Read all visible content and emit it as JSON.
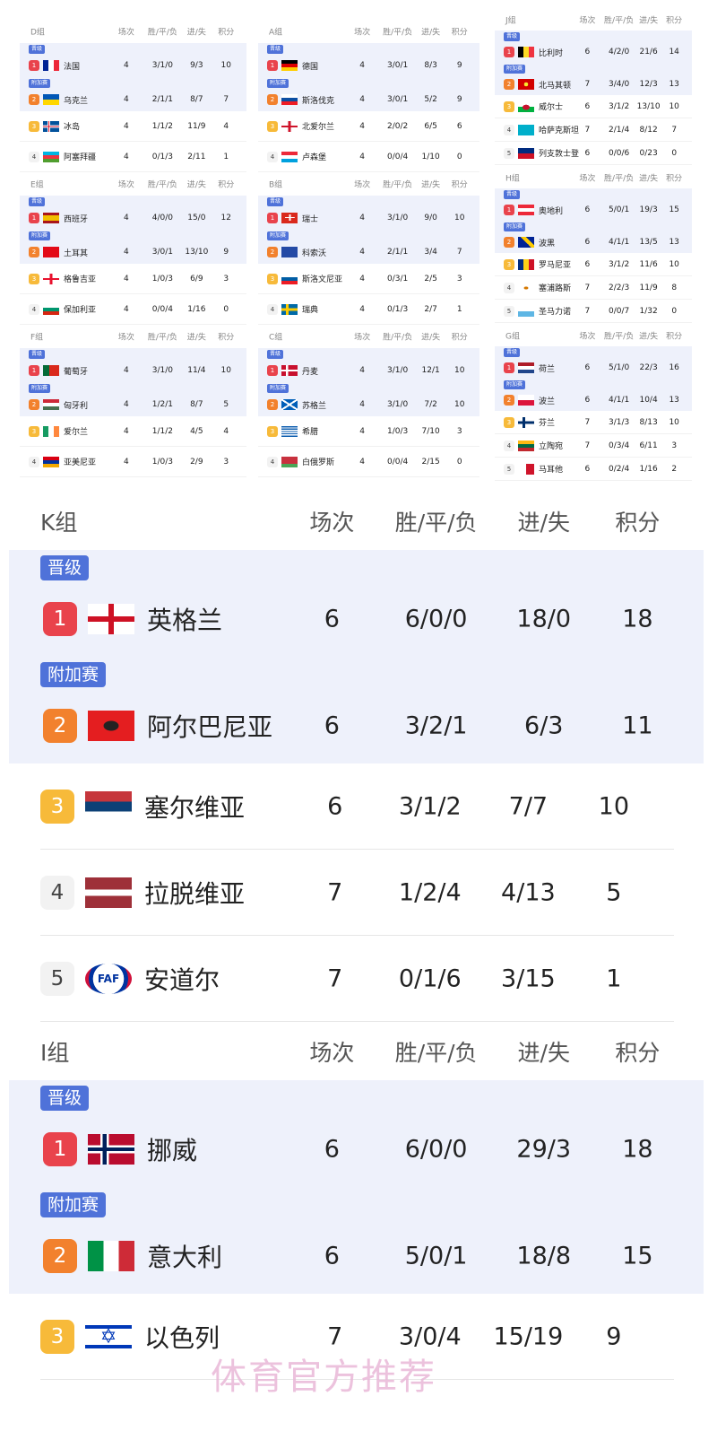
{
  "headers": {
    "played": "场次",
    "wdl": "胜/平/负",
    "gf_ga": "进/失",
    "pts": "积分"
  },
  "colors": {
    "tag": "#4f72d9",
    "rank1": "#e9434c",
    "rank2": "#f2812d",
    "rank3": "#f7ba3a",
    "highlight_row": "#eef1fb"
  },
  "mini_columns": [
    [
      {
        "name": "D组",
        "teams": [
          {
            "rank": "1",
            "tag": "晋级",
            "flag": "france",
            "name": "法国",
            "played": "4",
            "wdl": "3/1/0",
            "gf_ga": "9/3",
            "pts": "10"
          },
          {
            "rank": "2",
            "tag": "附加赛",
            "flag": "ukraine",
            "name": "乌克兰",
            "played": "4",
            "wdl": "2/1/1",
            "gf_ga": "8/7",
            "pts": "7"
          },
          {
            "rank": "3",
            "flag": "iceland",
            "name": "冰岛",
            "played": "4",
            "wdl": "1/1/2",
            "gf_ga": "11/9",
            "pts": "4"
          },
          {
            "rank": "4",
            "flag": "azerbaijan",
            "name": "阿塞拜疆",
            "played": "4",
            "wdl": "0/1/3",
            "gf_ga": "2/11",
            "pts": "1"
          }
        ]
      },
      {
        "name": "E组",
        "teams": [
          {
            "rank": "1",
            "tag": "晋级",
            "flag": "spain",
            "name": "西班牙",
            "played": "4",
            "wdl": "4/0/0",
            "gf_ga": "15/0",
            "pts": "12"
          },
          {
            "rank": "2",
            "tag": "附加赛",
            "flag": "turkey",
            "name": "土耳其",
            "played": "4",
            "wdl": "3/0/1",
            "gf_ga": "13/10",
            "pts": "9"
          },
          {
            "rank": "3",
            "flag": "georgia",
            "name": "格鲁吉亚",
            "played": "4",
            "wdl": "1/0/3",
            "gf_ga": "6/9",
            "pts": "3"
          },
          {
            "rank": "4",
            "flag": "bulgaria",
            "name": "保加利亚",
            "played": "4",
            "wdl": "0/0/4",
            "gf_ga": "1/16",
            "pts": "0"
          }
        ]
      },
      {
        "name": "F组",
        "teams": [
          {
            "rank": "1",
            "tag": "晋级",
            "flag": "portugal",
            "name": "葡萄牙",
            "played": "4",
            "wdl": "3/1/0",
            "gf_ga": "11/4",
            "pts": "10"
          },
          {
            "rank": "2",
            "tag": "附加赛",
            "flag": "hungary",
            "name": "匈牙利",
            "played": "4",
            "wdl": "1/2/1",
            "gf_ga": "8/7",
            "pts": "5"
          },
          {
            "rank": "3",
            "flag": "ireland",
            "name": "爱尔兰",
            "played": "4",
            "wdl": "1/1/2",
            "gf_ga": "4/5",
            "pts": "4"
          },
          {
            "rank": "4",
            "flag": "armenia",
            "name": "亚美尼亚",
            "played": "4",
            "wdl": "1/0/3",
            "gf_ga": "2/9",
            "pts": "3"
          }
        ]
      }
    ],
    [
      {
        "name": "A组",
        "teams": [
          {
            "rank": "1",
            "tag": "晋级",
            "flag": "germany",
            "name": "德国",
            "played": "4",
            "wdl": "3/0/1",
            "gf_ga": "8/3",
            "pts": "9"
          },
          {
            "rank": "2",
            "tag": "附加赛",
            "flag": "slovakia",
            "name": "斯洛伐克",
            "played": "4",
            "wdl": "3/0/1",
            "gf_ga": "5/2",
            "pts": "9"
          },
          {
            "rank": "3",
            "flag": "northern-ireland",
            "name": "北爱尔兰",
            "played": "4",
            "wdl": "2/0/2",
            "gf_ga": "6/5",
            "pts": "6"
          },
          {
            "rank": "4",
            "flag": "luxembourg",
            "name": "卢森堡",
            "played": "4",
            "wdl": "0/0/4",
            "gf_ga": "1/10",
            "pts": "0"
          }
        ]
      },
      {
        "name": "B组",
        "teams": [
          {
            "rank": "1",
            "tag": "晋级",
            "flag": "switzerland",
            "name": "瑞士",
            "played": "4",
            "wdl": "3/1/0",
            "gf_ga": "9/0",
            "pts": "10"
          },
          {
            "rank": "2",
            "tag": "附加赛",
            "flag": "kosovo",
            "name": "科索沃",
            "played": "4",
            "wdl": "2/1/1",
            "gf_ga": "3/4",
            "pts": "7"
          },
          {
            "rank": "3",
            "flag": "slovenia",
            "name": "斯洛文尼亚",
            "played": "4",
            "wdl": "0/3/1",
            "gf_ga": "2/5",
            "pts": "3"
          },
          {
            "rank": "4",
            "flag": "sweden",
            "name": "瑞典",
            "played": "4",
            "wdl": "0/1/3",
            "gf_ga": "2/7",
            "pts": "1"
          }
        ]
      },
      {
        "name": "C组",
        "teams": [
          {
            "rank": "1",
            "tag": "晋级",
            "flag": "denmark",
            "name": "丹麦",
            "played": "4",
            "wdl": "3/1/0",
            "gf_ga": "12/1",
            "pts": "10"
          },
          {
            "rank": "2",
            "tag": "附加赛",
            "flag": "scotland",
            "name": "苏格兰",
            "played": "4",
            "wdl": "3/1/0",
            "gf_ga": "7/2",
            "pts": "10"
          },
          {
            "rank": "3",
            "flag": "greece",
            "name": "希腊",
            "played": "4",
            "wdl": "1/0/3",
            "gf_ga": "7/10",
            "pts": "3"
          },
          {
            "rank": "4",
            "flag": "belarus",
            "name": "白俄罗斯",
            "played": "4",
            "wdl": "0/0/4",
            "gf_ga": "2/15",
            "pts": "0"
          }
        ]
      }
    ],
    [
      {
        "name": "J组",
        "teams": [
          {
            "rank": "1",
            "tag": "晋级",
            "flag": "belgium",
            "name": "比利时",
            "played": "6",
            "wdl": "4/2/0",
            "gf_ga": "21/6",
            "pts": "14"
          },
          {
            "rank": "2",
            "tag": "附加赛",
            "flag": "north-macedonia",
            "name": "北马其顿",
            "played": "7",
            "wdl": "3/4/0",
            "gf_ga": "12/3",
            "pts": "13"
          },
          {
            "rank": "3",
            "flag": "wales",
            "name": "威尔士",
            "played": "6",
            "wdl": "3/1/2",
            "gf_ga": "13/10",
            "pts": "10"
          },
          {
            "rank": "4",
            "flag": "kazakhstan",
            "name": "哈萨克斯坦",
            "played": "7",
            "wdl": "2/1/4",
            "gf_ga": "8/12",
            "pts": "7"
          },
          {
            "rank": "5",
            "flag": "liechtenstein",
            "name": "列支敦士登",
            "played": "6",
            "wdl": "0/0/6",
            "gf_ga": "0/23",
            "pts": "0"
          }
        ]
      },
      {
        "name": "H组",
        "teams": [
          {
            "rank": "1",
            "tag": "晋级",
            "flag": "austria",
            "name": "奥地利",
            "played": "6",
            "wdl": "5/0/1",
            "gf_ga": "19/3",
            "pts": "15"
          },
          {
            "rank": "2",
            "tag": "附加赛",
            "flag": "bosnia",
            "name": "波黑",
            "played": "6",
            "wdl": "4/1/1",
            "gf_ga": "13/5",
            "pts": "13"
          },
          {
            "rank": "3",
            "flag": "romania",
            "name": "罗马尼亚",
            "played": "6",
            "wdl": "3/1/2",
            "gf_ga": "11/6",
            "pts": "10"
          },
          {
            "rank": "4",
            "flag": "cyprus",
            "name": "塞浦路斯",
            "played": "7",
            "wdl": "2/2/3",
            "gf_ga": "11/9",
            "pts": "8"
          },
          {
            "rank": "5",
            "flag": "san-marino",
            "name": "圣马力诺",
            "played": "7",
            "wdl": "0/0/7",
            "gf_ga": "1/32",
            "pts": "0"
          }
        ]
      },
      {
        "name": "G组",
        "teams": [
          {
            "rank": "1",
            "tag": "晋级",
            "flag": "netherlands",
            "name": "荷兰",
            "played": "6",
            "wdl": "5/1/0",
            "gf_ga": "22/3",
            "pts": "16"
          },
          {
            "rank": "2",
            "tag": "附加赛",
            "flag": "poland",
            "name": "波兰",
            "played": "6",
            "wdl": "4/1/1",
            "gf_ga": "10/4",
            "pts": "13"
          },
          {
            "rank": "3",
            "flag": "finland",
            "name": "芬兰",
            "played": "7",
            "wdl": "3/1/3",
            "gf_ga": "8/13",
            "pts": "10"
          },
          {
            "rank": "4",
            "flag": "lithuania",
            "name": "立陶宛",
            "played": "7",
            "wdl": "0/3/4",
            "gf_ga": "6/11",
            "pts": "3"
          },
          {
            "rank": "5",
            "flag": "malta",
            "name": "马耳他",
            "played": "6",
            "wdl": "0/2/4",
            "gf_ga": "1/16",
            "pts": "2"
          }
        ]
      }
    ]
  ],
  "big_groups": [
    {
      "name": "K组",
      "teams": [
        {
          "rank": "1",
          "tag": "晋级",
          "flag": "england",
          "name": "英格兰",
          "played": "6",
          "wdl": "6/0/0",
          "gf_ga": "18/0",
          "pts": "18"
        },
        {
          "rank": "2",
          "tag": "附加赛",
          "flag": "albania",
          "name": "阿尔巴尼亚",
          "played": "6",
          "wdl": "3/2/1",
          "gf_ga": "6/3",
          "pts": "11"
        },
        {
          "rank": "3",
          "flag": "serbia",
          "name": "塞尔维亚",
          "played": "6",
          "wdl": "3/1/2",
          "gf_ga": "7/7",
          "pts": "10"
        },
        {
          "rank": "4",
          "flag": "latvia",
          "name": "拉脱维亚",
          "played": "7",
          "wdl": "1/2/4",
          "gf_ga": "4/13",
          "pts": "5"
        },
        {
          "rank": "5",
          "flag": "andorra",
          "logo_text": "FAF",
          "name": "安道尔",
          "played": "7",
          "wdl": "0/1/6",
          "gf_ga": "3/15",
          "pts": "1"
        }
      ]
    },
    {
      "name": "I组",
      "teams": [
        {
          "rank": "1",
          "tag": "晋级",
          "flag": "norway",
          "name": "挪威",
          "played": "6",
          "wdl": "6/0/0",
          "gf_ga": "29/3",
          "pts": "18"
        },
        {
          "rank": "2",
          "tag": "附加赛",
          "flag": "italy",
          "name": "意大利",
          "played": "6",
          "wdl": "5/0/1",
          "gf_ga": "18/8",
          "pts": "15"
        },
        {
          "rank": "3",
          "flag": "israel",
          "name": "以色列",
          "played": "7",
          "wdl": "3/0/4",
          "gf_ga": "15/19",
          "pts": "9"
        }
      ]
    }
  ],
  "watermark": "体育官方推荐"
}
